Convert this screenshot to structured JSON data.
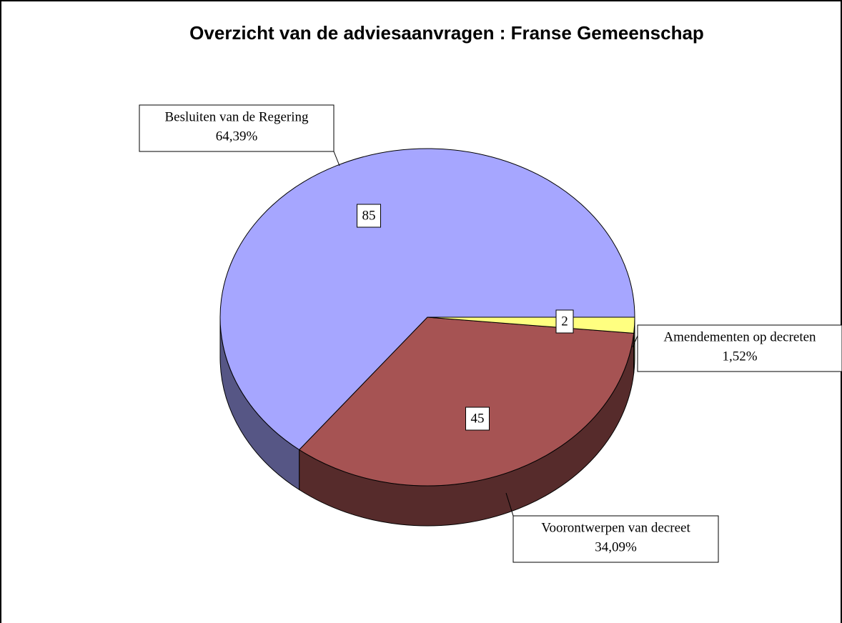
{
  "chart_data": {
    "type": "pie3d",
    "title": "Overzicht van de adviesaanvragen : Franse Gemeenschap",
    "categories": [
      "Besluiten van de Regering",
      "Voorontwerpen van decreet",
      "Amendementen op decreten"
    ],
    "values": [
      85,
      45,
      2
    ],
    "percentages": [
      64.39,
      34.09,
      1.52
    ],
    "percentage_labels": [
      "64,39%",
      "34,09%",
      "1,52%"
    ],
    "colors": [
      "#a6a6ff",
      "#a65353",
      "#ffff80"
    ]
  }
}
